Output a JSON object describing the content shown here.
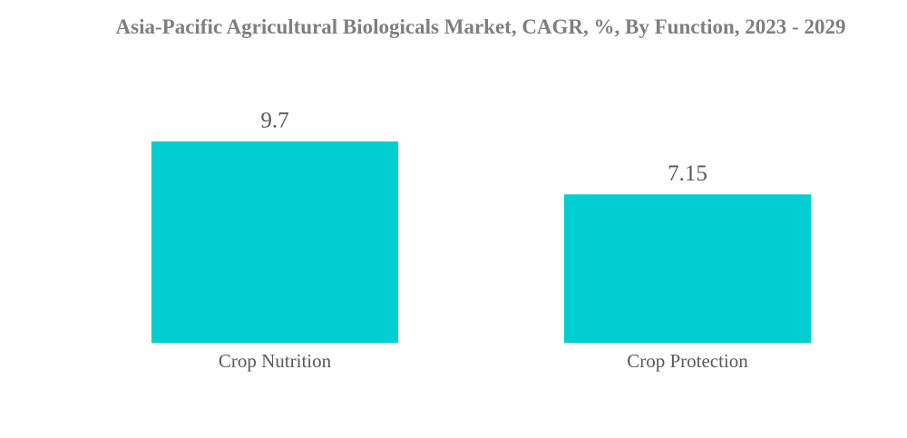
{
  "chart_data": {
    "type": "bar",
    "title": "Asia-Pacific Agricultural Biologicals Market, CAGR, %, By Function, 2023 - 2029",
    "categories": [
      "Crop Nutrition",
      "Crop Protection"
    ],
    "values": [
      9.7,
      7.15
    ],
    "color": "#00ced1"
  }
}
